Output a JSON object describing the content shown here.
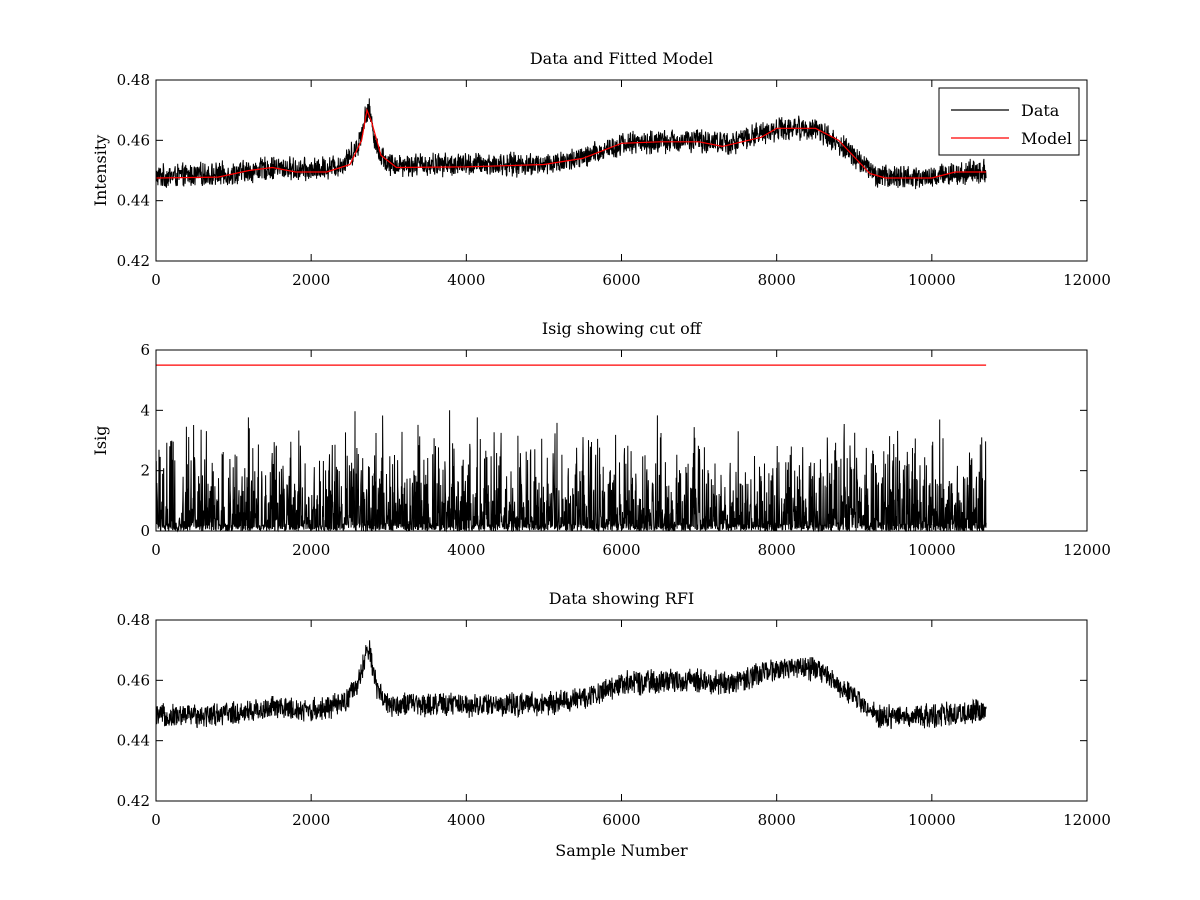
{
  "chart_data": [
    {
      "type": "line",
      "title": "Data and Fitted Model",
      "xlabel": "",
      "ylabel": "Intensity",
      "xlim": [
        0,
        12000
      ],
      "ylim": [
        0.42,
        0.48
      ],
      "xticks": [
        0,
        2000,
        4000,
        6000,
        8000,
        10000,
        12000
      ],
      "yticks": [
        0.42,
        0.44,
        0.46,
        0.48
      ],
      "legend": {
        "placement": "top-right",
        "entries": [
          "Data",
          "Model"
        ]
      },
      "series": [
        {
          "name": "Data",
          "color": "#000000",
          "style": "noisy",
          "x_range": [
            0,
            10700
          ],
          "noise_amplitude": 0.0045,
          "baseline": [
            [
              0,
              0.448
            ],
            [
              1000,
              0.449
            ],
            [
              1500,
              0.451
            ],
            [
              2000,
              0.45
            ],
            [
              2400,
              0.452
            ],
            [
              2600,
              0.458
            ],
            [
              2700,
              0.468
            ],
            [
              2750,
              0.47
            ],
            [
              2850,
              0.457
            ],
            [
              3000,
              0.452
            ],
            [
              4000,
              0.452
            ],
            [
              5000,
              0.452
            ],
            [
              5500,
              0.454
            ],
            [
              6000,
              0.459
            ],
            [
              7000,
              0.46
            ],
            [
              7400,
              0.459
            ],
            [
              8000,
              0.464
            ],
            [
              8500,
              0.464
            ],
            [
              9000,
              0.455
            ],
            [
              9300,
              0.448
            ],
            [
              10000,
              0.448
            ],
            [
              10700,
              0.45
            ]
          ]
        },
        {
          "name": "Model",
          "color": "#ff0000",
          "points": [
            [
              0,
              0.4475
            ],
            [
              800,
              0.4478
            ],
            [
              1200,
              0.45
            ],
            [
              1500,
              0.451
            ],
            [
              1800,
              0.4495
            ],
            [
              2200,
              0.4495
            ],
            [
              2500,
              0.452
            ],
            [
              2650,
              0.46
            ],
            [
              2720,
              0.47
            ],
            [
              2780,
              0.466
            ],
            [
              2900,
              0.455
            ],
            [
              3100,
              0.451
            ],
            [
              4000,
              0.4512
            ],
            [
              5000,
              0.452
            ],
            [
              5500,
              0.454
            ],
            [
              6000,
              0.459
            ],
            [
              6500,
              0.4595
            ],
            [
              7000,
              0.4595
            ],
            [
              7300,
              0.458
            ],
            [
              7800,
              0.461
            ],
            [
              8000,
              0.464
            ],
            [
              8500,
              0.464
            ],
            [
              8800,
              0.46
            ],
            [
              9200,
              0.449
            ],
            [
              9400,
              0.4475
            ],
            [
              10000,
              0.4475
            ],
            [
              10300,
              0.4495
            ],
            [
              10700,
              0.4495
            ]
          ]
        }
      ]
    },
    {
      "type": "line",
      "title": "Isig showing cut off",
      "xlabel": "",
      "ylabel": "Isig",
      "xlim": [
        0,
        12000
      ],
      "ylim": [
        0,
        6
      ],
      "xticks": [
        0,
        2000,
        4000,
        6000,
        8000,
        10000,
        12000
      ],
      "yticks": [
        0,
        2,
        4,
        6
      ],
      "series": [
        {
          "name": "Isig",
          "color": "#000000",
          "style": "abs-noise",
          "x_range": [
            0,
            10700
          ],
          "typical_max": 2.5,
          "peak": 4.0
        },
        {
          "name": "cut off",
          "color": "#ff0000",
          "points": [
            [
              0,
              5.5
            ],
            [
              10700,
              5.5
            ]
          ]
        }
      ]
    },
    {
      "type": "line",
      "title": "Data showing RFI",
      "xlabel": "Sample Number",
      "ylabel": "",
      "xlim": [
        0,
        12000
      ],
      "ylim": [
        0.42,
        0.48
      ],
      "xticks": [
        0,
        2000,
        4000,
        6000,
        8000,
        10000,
        12000
      ],
      "yticks": [
        0.42,
        0.44,
        0.46,
        0.48
      ],
      "series": [
        {
          "name": "Data",
          "color": "#000000",
          "style": "noisy",
          "x_range": [
            0,
            10700
          ],
          "noise_amplitude": 0.0045,
          "baseline": [
            [
              0,
              0.448
            ],
            [
              1000,
              0.449
            ],
            [
              1500,
              0.451
            ],
            [
              2000,
              0.45
            ],
            [
              2400,
              0.452
            ],
            [
              2600,
              0.458
            ],
            [
              2700,
              0.468
            ],
            [
              2750,
              0.47
            ],
            [
              2850,
              0.457
            ],
            [
              3000,
              0.452
            ],
            [
              4000,
              0.452
            ],
            [
              5000,
              0.452
            ],
            [
              5500,
              0.454
            ],
            [
              6000,
              0.459
            ],
            [
              7000,
              0.46
            ],
            [
              7400,
              0.459
            ],
            [
              8000,
              0.464
            ],
            [
              8500,
              0.464
            ],
            [
              9000,
              0.455
            ],
            [
              9300,
              0.448
            ],
            [
              10000,
              0.448
            ],
            [
              10700,
              0.45
            ]
          ]
        }
      ]
    }
  ]
}
